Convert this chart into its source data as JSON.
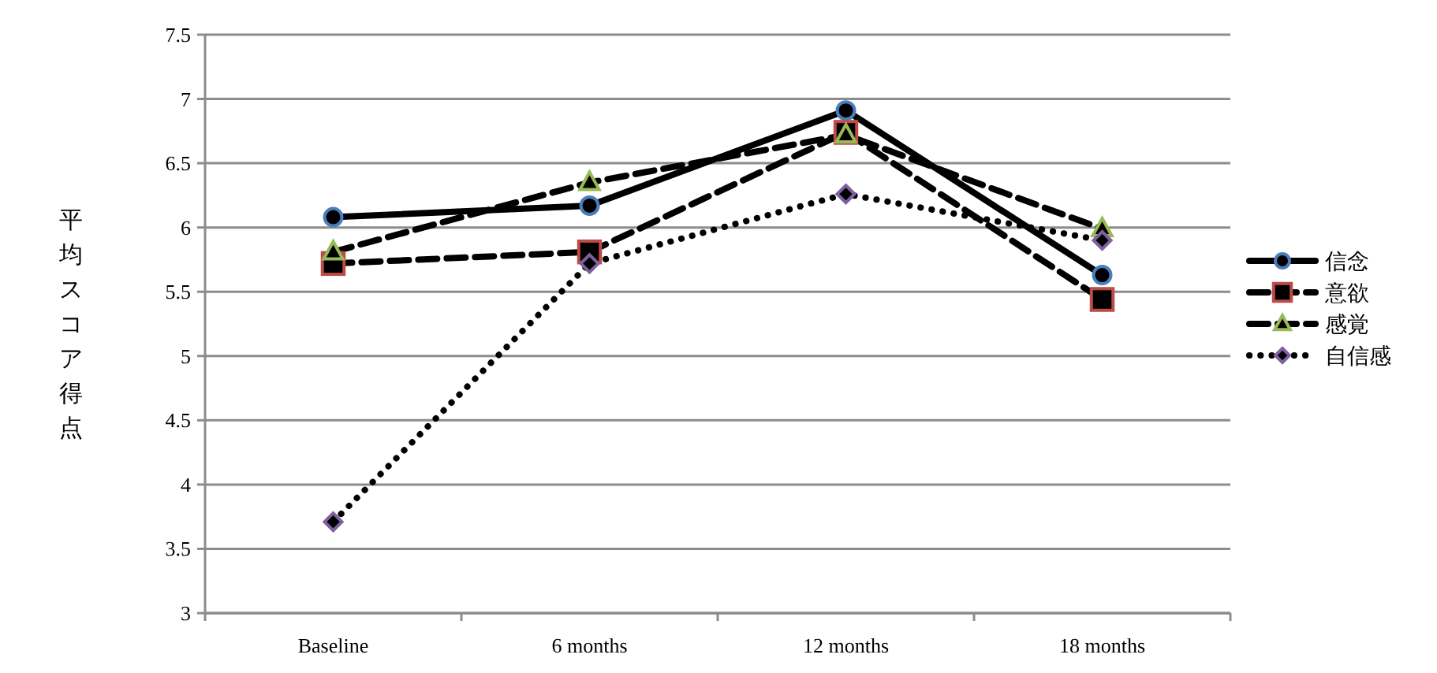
{
  "chart_data": {
    "type": "line",
    "ylabel": "平均スコア得点",
    "categories": [
      "Baseline",
      "6 months",
      "12 months",
      "18 months"
    ],
    "ylim": [
      3,
      7.5
    ],
    "yticks": [
      3,
      3.5,
      4,
      4.5,
      5,
      5.5,
      6,
      6.5,
      7,
      7.5
    ],
    "grid": "y",
    "legend": "right",
    "series": [
      {
        "name": "信念",
        "color": "#4a7ebb",
        "marker": "circle",
        "line_style": "solid",
        "values": [
          6.08,
          6.17,
          6.91,
          5.63
        ]
      },
      {
        "name": "意欲",
        "color": "#be4b48",
        "marker": "square",
        "line_style": "dashed",
        "values": [
          5.72,
          5.81,
          6.74,
          5.44
        ]
      },
      {
        "name": "感覚",
        "color": "#98b954",
        "marker": "triangle",
        "line_style": "dashed",
        "values": [
          5.81,
          6.35,
          6.72,
          5.99
        ]
      },
      {
        "name": "自信感",
        "color": "#7d60a0",
        "marker": "diamond",
        "line_style": "dotted",
        "values": [
          3.71,
          5.72,
          6.26,
          5.9
        ]
      }
    ]
  }
}
